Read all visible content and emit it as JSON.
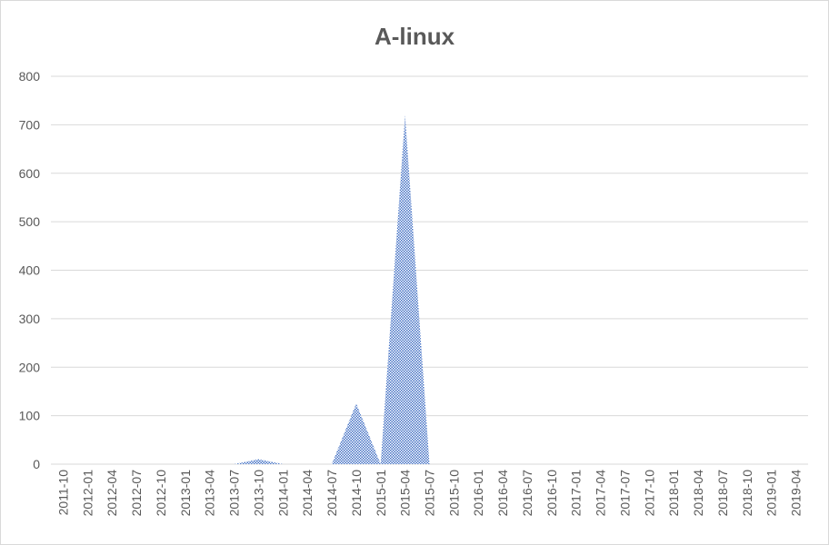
{
  "chart_data": {
    "type": "area",
    "title": "A-linux",
    "xlabel": "",
    "ylabel": "",
    "ylim": [
      0,
      800
    ],
    "yticks": [
      0,
      100,
      200,
      300,
      400,
      500,
      600,
      700,
      800
    ],
    "grid": true,
    "legend": "none",
    "colors": {
      "fill": "#4472c4",
      "grid": "#d9d9d9",
      "text": "#595959"
    },
    "categories": [
      "2011-10",
      "2012-01",
      "2012-04",
      "2012-07",
      "2012-10",
      "2013-01",
      "2013-04",
      "2013-07",
      "2013-10",
      "2014-01",
      "2014-04",
      "2014-07",
      "2014-10",
      "2015-01",
      "2015-04",
      "2015-07",
      "2015-10",
      "2016-01",
      "2016-04",
      "2016-07",
      "2016-10",
      "2017-01",
      "2017-04",
      "2017-07",
      "2017-10",
      "2018-01",
      "2018-04",
      "2018-07",
      "2018-10",
      "2019-01",
      "2019-04"
    ],
    "series": [
      {
        "values": [
          0,
          0,
          0,
          0,
          0,
          0,
          0,
          0,
          10,
          0,
          0,
          0,
          125,
          0,
          720,
          0,
          0,
          0,
          0,
          0,
          0,
          0,
          0,
          0,
          0,
          0,
          0,
          0,
          0,
          0,
          0
        ]
      }
    ]
  }
}
